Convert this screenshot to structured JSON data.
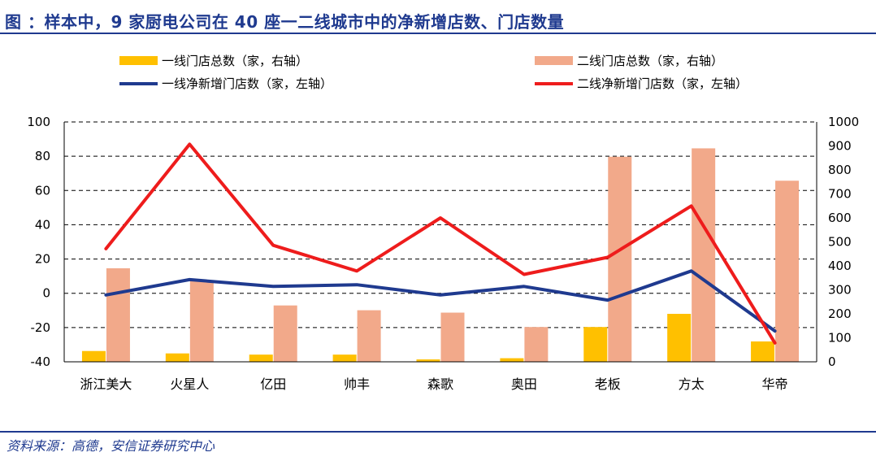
{
  "header": {
    "title": "图 ：样本中，9 家厨电公司在 40 座一二线城市中的净新增店数、门店数量"
  },
  "footer": {
    "source": "资料来源：高德，安信证券研究中心"
  },
  "colors": {
    "title": "#1f3a8f",
    "tier1_bar": "#ffc000",
    "tier2_bar": "#f2a98a",
    "tier1_line": "#1f3a8f",
    "tier2_line": "#ee1c1c",
    "grid": "#000000"
  },
  "chart_data": {
    "type": "bar",
    "categories": [
      "浙江美大",
      "火星人",
      "亿田",
      "帅丰",
      "森歌",
      "奥田",
      "老板",
      "方太",
      "华帝"
    ],
    "y_left": {
      "min": -40,
      "max": 100,
      "ticks": [
        -40,
        -20,
        0,
        20,
        40,
        60,
        80,
        100
      ]
    },
    "y_right": {
      "min": 0,
      "max": 1000,
      "ticks": [
        0,
        100,
        200,
        300,
        400,
        500,
        600,
        700,
        800,
        900,
        1000
      ]
    },
    "grid": "dashed horizontal",
    "legend_position": "top",
    "series": [
      {
        "name": "一线门店总数（家，右轴）",
        "kind": "bar",
        "axis": "right",
        "color": "#ffc000",
        "values": [
          45,
          35,
          30,
          30,
          10,
          15,
          145,
          200,
          85
        ]
      },
      {
        "name": "二线门店总数（家，右轴）",
        "kind": "bar",
        "axis": "right",
        "color": "#f2a98a",
        "values": [
          390,
          340,
          235,
          215,
          205,
          145,
          855,
          890,
          755
        ]
      },
      {
        "name": "一线净新增门店数（家，左轴）",
        "kind": "line",
        "axis": "left",
        "color": "#1f3a8f",
        "values": [
          -1,
          8,
          4,
          5,
          -1,
          4,
          -4,
          13,
          -22
        ]
      },
      {
        "name": "二线净新增门店数（家，左轴）",
        "kind": "line",
        "axis": "left",
        "color": "#ee1c1c",
        "values": [
          26,
          87,
          28,
          13,
          44,
          11,
          21,
          51,
          -29
        ]
      }
    ]
  }
}
